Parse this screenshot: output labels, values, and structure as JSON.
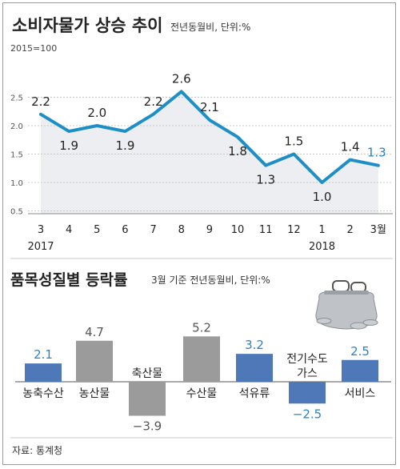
{
  "colors": {
    "line": "#1e8fc6",
    "area": "#eceef1",
    "positive_bar": "#4f78b8",
    "negative_bar": "#4f78b8",
    "neutral_bar": "#9b9b9b",
    "highlight_label": "#2a82c4",
    "text": "#222222",
    "grid": "#c8c8c8"
  },
  "chart_data": [
    {
      "type": "area",
      "title": "소비자물가 상승 추이",
      "subtitle": "전년동월비, 단위:%",
      "base_note": "2015=100",
      "ylim": [
        0.5,
        2.6
      ],
      "yticks": [
        "0.5",
        "1.0",
        "1.5",
        "2.0",
        "2.5"
      ],
      "ytick_values": [
        0.5,
        1.0,
        1.5,
        2.0,
        2.5
      ],
      "categories": [
        "3",
        "4",
        "5",
        "6",
        "7",
        "8",
        "9",
        "10",
        "11",
        "12",
        "1",
        "2",
        "3월"
      ],
      "year_labels": [
        "2017",
        "2018"
      ],
      "values": [
        2.2,
        1.9,
        2.0,
        1.9,
        2.2,
        2.6,
        2.1,
        1.8,
        1.3,
        1.5,
        1.0,
        1.4,
        1.3
      ],
      "value_labels": [
        "2.2",
        "1.9",
        "2.0",
        "1.9",
        "2.2",
        "2.6",
        "2.1",
        "1.8",
        "1.3",
        "1.5",
        "1.0",
        "1.4",
        "1.3"
      ],
      "grid": true
    },
    {
      "type": "bar",
      "title": "품목성질별 등락률",
      "subtitle": "3월 기준 전년동월비, 단위:%",
      "categories": [
        "농축수산",
        "농산물",
        "축산물",
        "수산물",
        "석유류",
        "전기수도가스",
        "서비스"
      ],
      "category_labels": [
        "농축수산",
        "농산물",
        "축산물",
        "수산물",
        "석유류",
        "전기수도 가스",
        "서비스"
      ],
      "values": [
        2.1,
        4.7,
        -3.9,
        5.2,
        3.2,
        -2.5,
        2.5
      ],
      "value_labels": [
        "2.1",
        "4.7",
        "−3.9",
        "5.2",
        "3.2",
        "−2.5",
        "2.5"
      ],
      "highlighted": [
        true,
        false,
        false,
        false,
        true,
        true,
        true
      ],
      "source": "자료: 통계청"
    }
  ]
}
